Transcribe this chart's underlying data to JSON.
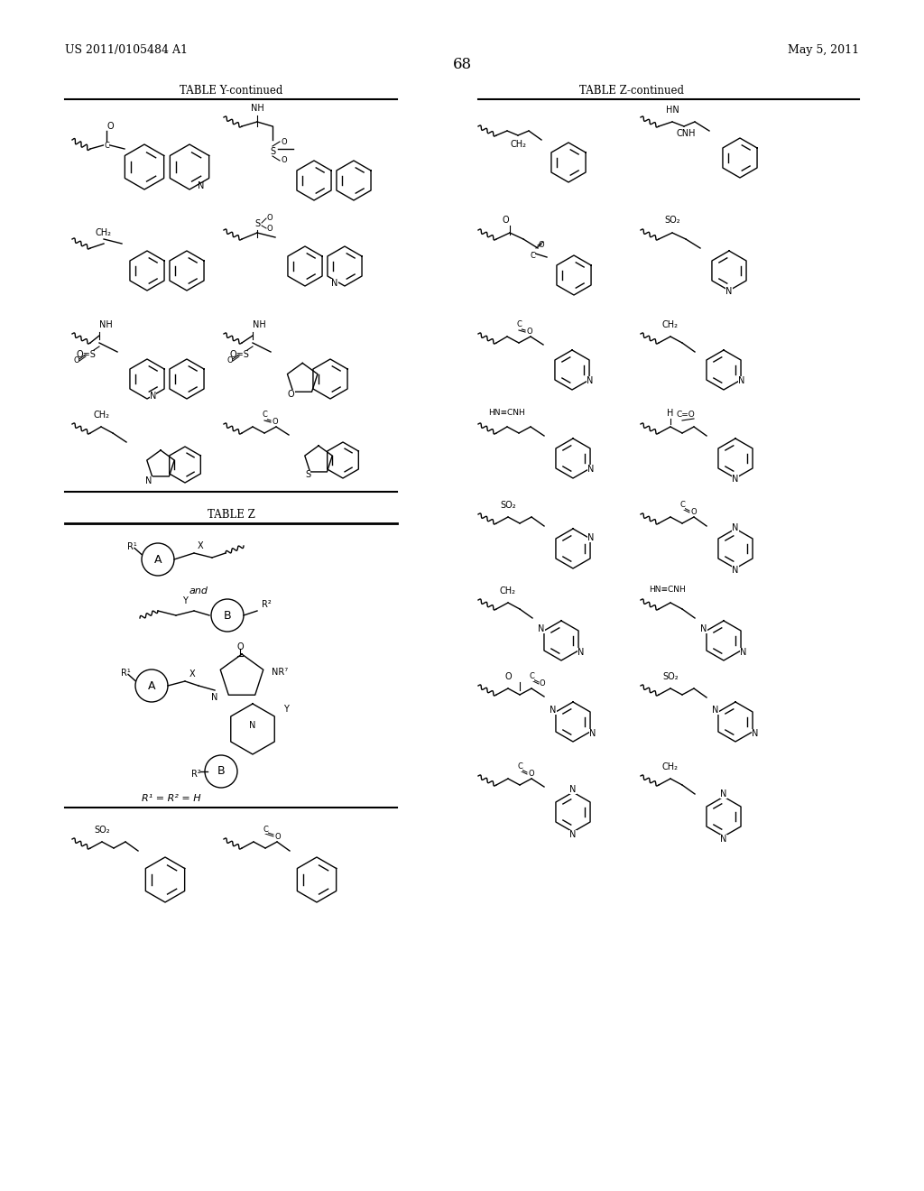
{
  "bg_color": "#ffffff",
  "text_color": "#000000",
  "header_left": "US 2011/0105484 A1",
  "header_right": "May 5, 2011",
  "page_number": "68",
  "table_y_title": "TABLE Y-continued",
  "table_z_title": "TABLE Z-continued",
  "table_z_new_title": "TABLE Z",
  "figsize": [
    10.24,
    13.2
  ],
  "dpi": 100
}
